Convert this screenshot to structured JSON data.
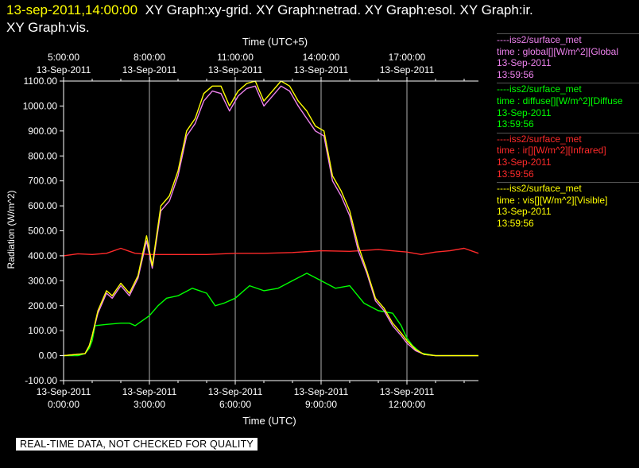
{
  "header": {
    "timestamp": "13-sep-2011,14:00:00",
    "graphs_line1": "XY Graph:xy-grid.  XY Graph:netrad.  XY Graph:esol.  XY Graph:ir.",
    "graphs_line2": "XY Graph:vis."
  },
  "legend": [
    {
      "source": "----iss2/surface_met",
      "field": "time : global[][W/m^2][Global",
      "date": "13-Sep-2011",
      "time": "13:59:56",
      "color": "#ee82ee"
    },
    {
      "source": "----iss2/surface_met",
      "field": "time : diffuse[][W/m^2][Diffuse",
      "date": "13-Sep-2011",
      "time": "13:59:56",
      "color": "#00ff00"
    },
    {
      "source": "----iss2/surface_met",
      "field": "time : ir[][W/m^2][Infrared]",
      "date": "13-Sep-2011",
      "time": "13:59:56",
      "color": "#ff2a2a"
    },
    {
      "source": "----iss2/surface_met",
      "field": "time : vis[][W/m^2][Visible]",
      "date": "13-Sep-2011",
      "time": "13:59:56",
      "color": "#ffff00"
    }
  ],
  "disclaimer": "REAL-TIME DATA, NOT CHECKED FOR QUALITY",
  "chart_data": {
    "type": "line",
    "xlabel": "Time (UTC)",
    "x2label": "Time (UTC+5)",
    "ylabel": "Radiation (W/m^2)",
    "ylim": [
      -100,
      1100
    ],
    "xlim_hours": [
      0,
      14.5
    ],
    "grid": true,
    "y_ticks": [
      "-100.00",
      "0.00",
      "100.00",
      "200.00",
      "300.00",
      "400.00",
      "500.00",
      "600.00",
      "700.00",
      "800.00",
      "900.00",
      "1000.00",
      "1100.00"
    ],
    "x_ticks_bottom": [
      {
        "hour": 0,
        "date": "13-Sep-2011",
        "time": "0:00:00"
      },
      {
        "hour": 3,
        "date": "13-Sep-2011",
        "time": "3:00:00"
      },
      {
        "hour": 6,
        "date": "13-Sep-2011",
        "time": "6:00:00"
      },
      {
        "hour": 9,
        "date": "13-Sep-2011",
        "time": "9:00:00"
      },
      {
        "hour": 12,
        "date": "13-Sep-2011",
        "time": "12:00:00"
      }
    ],
    "x_ticks_top": [
      {
        "hour": 0,
        "time": "5:00:00",
        "date": "13-Sep-2011"
      },
      {
        "hour": 3,
        "time": "8:00:00",
        "date": "13-Sep-2011"
      },
      {
        "hour": 6,
        "time": "11:00:00",
        "date": "13-Sep-2011"
      },
      {
        "hour": 9,
        "time": "14:00:00",
        "date": "13-Sep-2011"
      },
      {
        "hour": 12,
        "time": "17:00:00",
        "date": "13-Sep-2011"
      }
    ],
    "series": [
      {
        "name": "ir",
        "color": "#ff2a2a",
        "x": [
          0,
          0.5,
          1,
          1.5,
          2,
          2.5,
          3,
          4,
          5,
          6,
          7,
          8,
          9,
          10,
          11,
          12,
          12.5,
          13,
          13.5,
          14,
          14.5
        ],
        "y": [
          400,
          408,
          405,
          410,
          430,
          410,
          405,
          405,
          405,
          410,
          410,
          413,
          420,
          418,
          425,
          415,
          405,
          415,
          420,
          430,
          410
        ]
      },
      {
        "name": "diffuse",
        "color": "#00ff00",
        "x": [
          0,
          0.5,
          0.75,
          0.9,
          1.0,
          1.1,
          1.5,
          2.0,
          2.3,
          2.5,
          3.0,
          3.3,
          3.6,
          4.0,
          4.5,
          5.0,
          5.3,
          5.6,
          6.0,
          6.5,
          7.0,
          7.5,
          8.0,
          8.5,
          9.0,
          9.5,
          10.0,
          10.5,
          11.0,
          11.5,
          11.8,
          12.0,
          12.2,
          12.5,
          13,
          14.5
        ],
        "y": [
          0,
          0,
          8,
          30,
          60,
          120,
          125,
          130,
          130,
          120,
          160,
          200,
          230,
          240,
          270,
          250,
          200,
          210,
          230,
          280,
          260,
          270,
          300,
          330,
          300,
          270,
          280,
          210,
          180,
          170,
          120,
          70,
          40,
          10,
          0,
          0
        ]
      },
      {
        "name": "global",
        "color": "#ee82ee",
        "x": [
          0,
          0.75,
          0.9,
          1.0,
          1.2,
          1.5,
          1.7,
          2.0,
          2.3,
          2.6,
          2.9,
          3.1,
          3.4,
          3.7,
          4.0,
          4.3,
          4.6,
          4.9,
          5.2,
          5.5,
          5.8,
          6.1,
          6.4,
          6.7,
          7.0,
          7.3,
          7.6,
          7.9,
          8.2,
          8.5,
          8.8,
          9.1,
          9.4,
          9.7,
          10.0,
          10.3,
          10.6,
          10.9,
          11.2,
          11.5,
          11.8,
          12.0,
          12.3,
          12.6,
          13,
          14.5
        ],
        "y": [
          0,
          8,
          40,
          80,
          170,
          250,
          230,
          280,
          240,
          310,
          460,
          350,
          580,
          620,
          720,
          880,
          930,
          1020,
          1060,
          1050,
          980,
          1040,
          1070,
          1080,
          1000,
          1040,
          1080,
          1060,
          1000,
          950,
          900,
          880,
          700,
          640,
          560,
          420,
          330,
          220,
          180,
          120,
          80,
          50,
          20,
          5,
          0,
          0
        ]
      },
      {
        "name": "vis",
        "color": "#ffff00",
        "x": [
          0,
          0.75,
          0.9,
          1.0,
          1.2,
          1.5,
          1.7,
          2.0,
          2.3,
          2.6,
          2.9,
          3.1,
          3.4,
          3.7,
          4.0,
          4.3,
          4.6,
          4.9,
          5.2,
          5.5,
          5.8,
          6.1,
          6.4,
          6.7,
          7.0,
          7.3,
          7.6,
          7.9,
          8.2,
          8.5,
          8.8,
          9.1,
          9.4,
          9.7,
          10.0,
          10.3,
          10.6,
          10.9,
          11.2,
          11.5,
          11.8,
          12.0,
          12.3,
          12.6,
          13,
          14.5
        ],
        "y": [
          0,
          8,
          40,
          80,
          180,
          260,
          240,
          290,
          250,
          320,
          480,
          360,
          600,
          640,
          740,
          900,
          950,
          1050,
          1080,
          1080,
          1000,
          1060,
          1090,
          1100,
          1020,
          1060,
          1100,
          1080,
          1020,
          980,
          920,
          900,
          720,
          660,
          580,
          440,
          340,
          230,
          190,
          130,
          90,
          60,
          25,
          5,
          0,
          0
        ]
      }
    ]
  }
}
